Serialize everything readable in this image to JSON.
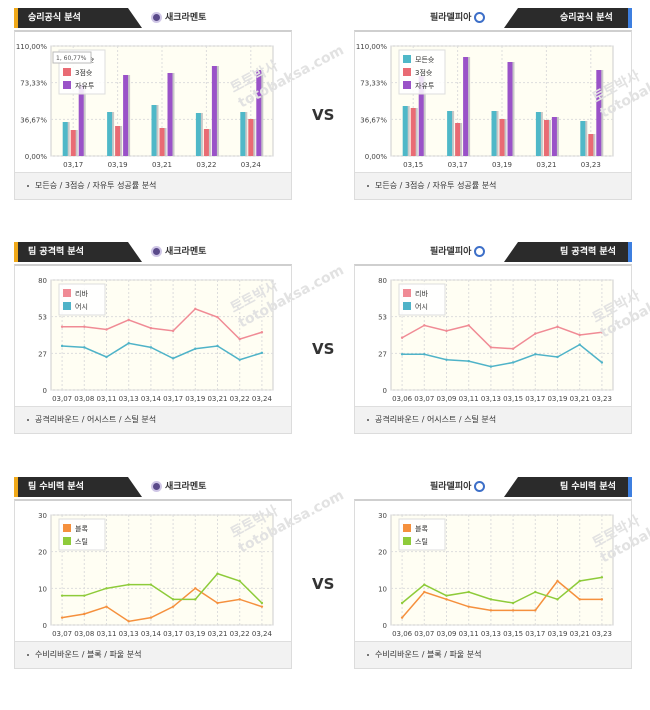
{
  "vs_label": "VS",
  "watermark_lines": [
    "토토박사",
    "totobaksa.com"
  ],
  "rows": [
    {
      "left": {
        "title": "승리공식 분석",
        "team": "새크라멘토",
        "footer": "모든승 / 3점승 / 자유투 성공률 분석",
        "chart_data": {
          "type": "bar",
          "categories": [
            "03,17",
            "03,19",
            "03,21",
            "03,22",
            "03,24"
          ],
          "yticks": [
            "0,00%",
            "36,67%",
            "73,33%",
            "110,00%"
          ],
          "ylim": [
            0,
            110
          ],
          "tooltip": "1, 60,77%",
          "series": [
            {
              "name": "모든슛",
              "color": "#4fb8c8",
              "values": [
                34,
                44,
                51,
                43,
                44
              ]
            },
            {
              "name": "3점슛",
              "color": "#e96b74",
              "values": [
                26,
                30,
                28,
                27,
                37
              ]
            },
            {
              "name": "자유투",
              "color": "#9a52c8",
              "values": [
                71,
                81,
                83,
                90,
                86
              ]
            }
          ]
        }
      },
      "right": {
        "title": "승리공식 분석",
        "team": "필라델피아",
        "footer": "모든승 / 3점승 / 자유투 성공률 분석",
        "chart_data": {
          "type": "bar",
          "categories": [
            "03,15",
            "03,17",
            "03,19",
            "03,21",
            "03,23"
          ],
          "yticks": [
            "0,00%",
            "36,67%",
            "73,33%",
            "110,00%"
          ],
          "ylim": [
            0,
            110
          ],
          "series": [
            {
              "name": "모든슛",
              "color": "#4fb8c8",
              "values": [
                50,
                45,
                45,
                44,
                35
              ]
            },
            {
              "name": "3점슛",
              "color": "#e96b74",
              "values": [
                48,
                33,
                37,
                36,
                22
              ]
            },
            {
              "name": "자유투",
              "color": "#9a52c8",
              "values": [
                80,
                99,
                94,
                39,
                86
              ]
            }
          ]
        }
      }
    },
    {
      "left": {
        "title": "팀 공격력 분석",
        "team": "새크라멘토",
        "footer": "공격리바운드 / 어시스트 / 스틸 분석",
        "chart_data": {
          "type": "line",
          "categories": [
            "03,07",
            "03,08",
            "03,11",
            "03,13",
            "03,14",
            "03,17",
            "03,19",
            "03,21",
            "03,22",
            "03,24"
          ],
          "yticks": [
            "0",
            "27",
            "53",
            "80"
          ],
          "ylim": [
            0,
            80
          ],
          "series": [
            {
              "name": "리바",
              "color": "#f08b95",
              "values": [
                46,
                46,
                44,
                51,
                45,
                43,
                59,
                53,
                37,
                42
              ]
            },
            {
              "name": "어시",
              "color": "#4fb3c8",
              "values": [
                32,
                31,
                24,
                34,
                31,
                23,
                30,
                32,
                22,
                27
              ]
            }
          ]
        }
      },
      "right": {
        "title": "팀 공격력 분석",
        "team": "필라델피아",
        "footer": "공격리바운드 / 어시스트 / 스틸 분석",
        "chart_data": {
          "type": "line",
          "categories": [
            "03,06",
            "03,07",
            "03,09",
            "03,11",
            "03,13",
            "03,15",
            "03,17",
            "03,19",
            "03,21",
            "03,23"
          ],
          "yticks": [
            "0",
            "27",
            "53",
            "80"
          ],
          "ylim": [
            0,
            80
          ],
          "series": [
            {
              "name": "리바",
              "color": "#f08b95",
              "values": [
                38,
                47,
                43,
                47,
                31,
                30,
                41,
                46,
                40,
                42
              ]
            },
            {
              "name": "어시",
              "color": "#4fb3c8",
              "values": [
                26,
                26,
                22,
                21,
                17,
                20,
                26,
                24,
                33,
                20
              ]
            }
          ]
        }
      }
    },
    {
      "left": {
        "title": "팀 수비력 분석",
        "team": "새크라멘토",
        "footer": "수비리바운드 / 블록 / 파울 분석",
        "chart_data": {
          "type": "line",
          "categories": [
            "03,07",
            "03,08",
            "03,11",
            "03,13",
            "03,14",
            "03,17",
            "03,19",
            "03,21",
            "03,22",
            "03,24"
          ],
          "yticks": [
            "0",
            "10",
            "20",
            "30"
          ],
          "ylim": [
            0,
            30
          ],
          "series": [
            {
              "name": "블록",
              "color": "#f5903d",
              "values": [
                2,
                3,
                5,
                1,
                2,
                5,
                10,
                6,
                7,
                5
              ]
            },
            {
              "name": "스틸",
              "color": "#8ecb3a",
              "values": [
                8,
                8,
                10,
                11,
                11,
                7,
                7,
                14,
                12,
                6
              ]
            }
          ]
        }
      },
      "right": {
        "title": "팀 수비력 분석",
        "team": "필라델피아",
        "footer": "수비리바운드 / 블록 / 파울 분석",
        "chart_data": {
          "type": "line",
          "categories": [
            "03,06",
            "03,07",
            "03,09",
            "03,11",
            "03,13",
            "03,15",
            "03,17",
            "03,19",
            "03,21",
            "03,23"
          ],
          "yticks": [
            "0",
            "10",
            "20",
            "30"
          ],
          "ylim": [
            0,
            30
          ],
          "series": [
            {
              "name": "블록",
              "color": "#f5903d",
              "values": [
                2,
                9,
                7,
                5,
                4,
                4,
                4,
                12,
                7,
                7
              ]
            },
            {
              "name": "스틸",
              "color": "#8ecb3a",
              "values": [
                6,
                11,
                8,
                9,
                7,
                6,
                9,
                7,
                12,
                13
              ]
            }
          ]
        }
      }
    }
  ],
  "colors": {
    "accent_left": "#f0a91a",
    "accent_right": "#3d7fe0",
    "plot_bg": "#fffef3",
    "grid": "#dddddd"
  }
}
